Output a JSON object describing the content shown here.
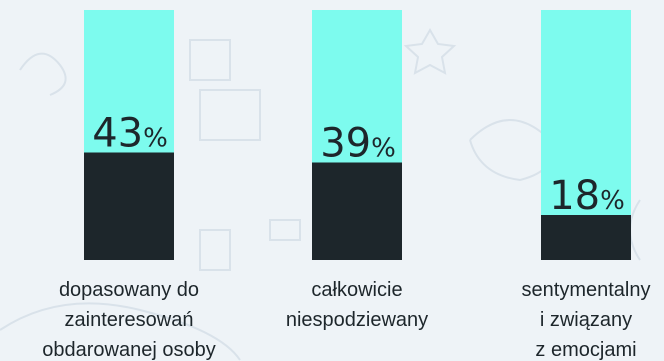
{
  "chart_data": {
    "type": "bar",
    "stacked_percent": true,
    "categories": [
      [
        "dopasowany do",
        "zainteresowań",
        "obdarowanej osoby"
      ],
      [
        "całkowicie",
        "niespodziewany"
      ],
      [
        "sentymentalny",
        "i związany",
        "z emocjami"
      ]
    ],
    "values": [
      43,
      39,
      18
    ],
    "value_labels": [
      "43",
      "39",
      "18"
    ],
    "percent_sign": "%",
    "ylim": [
      0,
      100
    ]
  },
  "colors": {
    "bar_value": "#1d262b",
    "bar_rest": "#7dfbee",
    "background": "#eef3f7",
    "doodle": "#d7e0e8"
  }
}
